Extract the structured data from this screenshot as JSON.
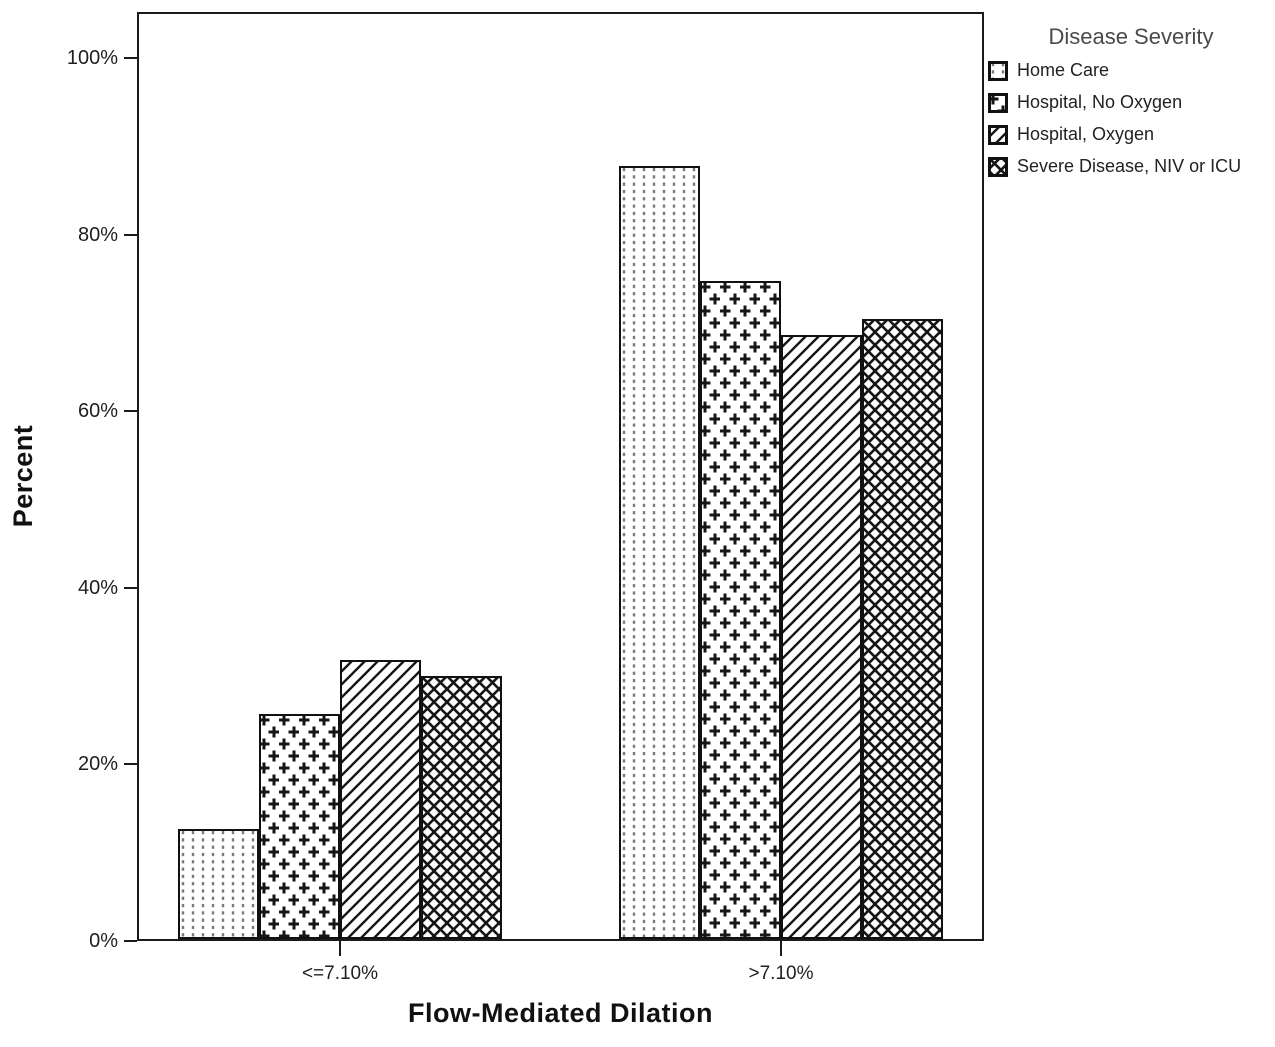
{
  "chart_data": {
    "type": "bar",
    "title": "",
    "xlabel": "Flow-Mediated Dilation",
    "ylabel": "Percent",
    "categories": [
      "<=7.10%",
      ">7.10%"
    ],
    "series": [
      {
        "name": "Home Care",
        "pattern": "dots",
        "values": [
          12.5,
          87.5
        ]
      },
      {
        "name": "Hospital, No Oxygen",
        "pattern": "plus",
        "values": [
          25.5,
          74.5
        ]
      },
      {
        "name": "Hospital, Oxygen",
        "pattern": "diag",
        "values": [
          31.6,
          68.4
        ]
      },
      {
        "name": "Severe Disease, NIV or ICU",
        "pattern": "cross",
        "values": [
          29.8,
          70.2
        ]
      }
    ],
    "ylim": [
      0,
      105.2
    ],
    "yticks": [
      {
        "value": 0,
        "label": "0%"
      },
      {
        "value": 20,
        "label": "20%"
      },
      {
        "value": 40,
        "label": "40%"
      },
      {
        "value": 60,
        "label": "60%"
      },
      {
        "value": 80,
        "label": "80%"
      },
      {
        "value": 100,
        "label": "100%"
      }
    ],
    "legend_title": "Disease Severity",
    "legend_position": "outside-top-right",
    "grid": false,
    "colors": {
      "bar_fill": "#ffffff",
      "bar_border": "#111111",
      "pattern_ink": "#161616",
      "dot_ink": "#787878",
      "axis": "#1b1b1b"
    }
  }
}
